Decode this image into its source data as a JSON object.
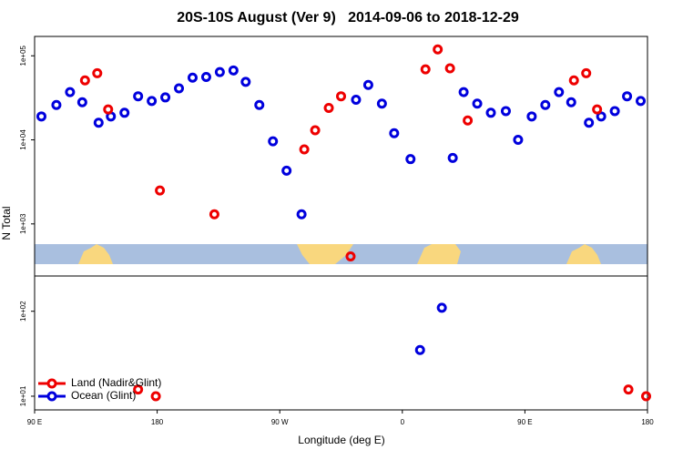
{
  "chart_data": [
    {
      "type": "scatter",
      "title": "20S-10S August (Ver 9)   2014-09-06 to 2018-12-29",
      "y_label": "N Total",
      "log_y": true,
      "xlim": [
        90,
        540
      ],
      "ylim": [
        240,
        170000
      ],
      "yticks": [
        {
          "value": 1000,
          "label": "1e+03"
        },
        {
          "value": 10000,
          "label": "1e+04"
        },
        {
          "value": 100000,
          "label": "1e+05"
        }
      ],
      "series": [
        {
          "color": "#0000dd",
          "x": [
            95,
            106,
            116,
            125,
            137,
            146,
            156,
            166,
            176,
            186,
            196,
            206,
            216,
            226,
            236,
            245,
            255,
            265,
            275,
            286,
            326,
            335,
            345,
            354,
            366,
            397,
            405,
            415,
            425,
            436,
            445,
            455,
            465,
            475,
            484,
            497,
            506,
            516,
            525,
            535
          ],
          "values": [
            19000,
            26000,
            37000,
            28000,
            16000,
            19000,
            21000,
            33000,
            29000,
            32000,
            41000,
            55000,
            56000,
            64000,
            67000,
            49000,
            26000,
            9600,
            4300,
            1300,
            30000,
            45000,
            27000,
            12000,
            5900,
            6100,
            37000,
            27000,
            21000,
            22000,
            10000,
            19000,
            26000,
            37000,
            28000,
            16000,
            19000,
            22000,
            33000,
            29000
          ]
        },
        {
          "color": "#ee0000",
          "x": [
            127,
            136,
            144,
            182,
            222,
            288,
            296,
            306,
            315,
            322,
            377,
            386,
            395,
            408,
            486,
            495,
            503
          ],
          "values": [
            51000,
            62000,
            23000,
            2500,
            1300,
            7700,
            13000,
            24000,
            33000,
            410,
            69000,
            119000,
            71000,
            17000,
            51000,
            62000,
            23000
          ]
        }
      ]
    },
    {
      "type": "scatter",
      "x_label": "Longitude (deg E)",
      "log_y": true,
      "xlim": [
        90,
        540
      ],
      "ylim": [
        6.9,
        260
      ],
      "xticks": [
        {
          "value": 90,
          "label": "90 E"
        },
        180,
        {
          "value": 270,
          "label": "90 W"
        },
        {
          "value": 360,
          "label": "0"
        },
        {
          "value": 450,
          "label": "90 E"
        },
        {
          "value": 540,
          "label": "180"
        }
      ],
      "yticks": [
        {
          "value": 10,
          "label": "1e+01"
        },
        {
          "value": 100,
          "label": "1e+02"
        }
      ],
      "legend": "lower left",
      "series": [
        {
          "name": "Land (Nadir&Glint)",
          "color": "#ee0000",
          "x": [
            166,
            179,
            526,
            539
          ],
          "values": [
            12,
            10,
            12,
            10
          ]
        },
        {
          "name": "Ocean (Glint)",
          "color": "#0000dd",
          "x": [
            373,
            389
          ],
          "values": [
            35,
            110
          ]
        }
      ]
    }
  ]
}
